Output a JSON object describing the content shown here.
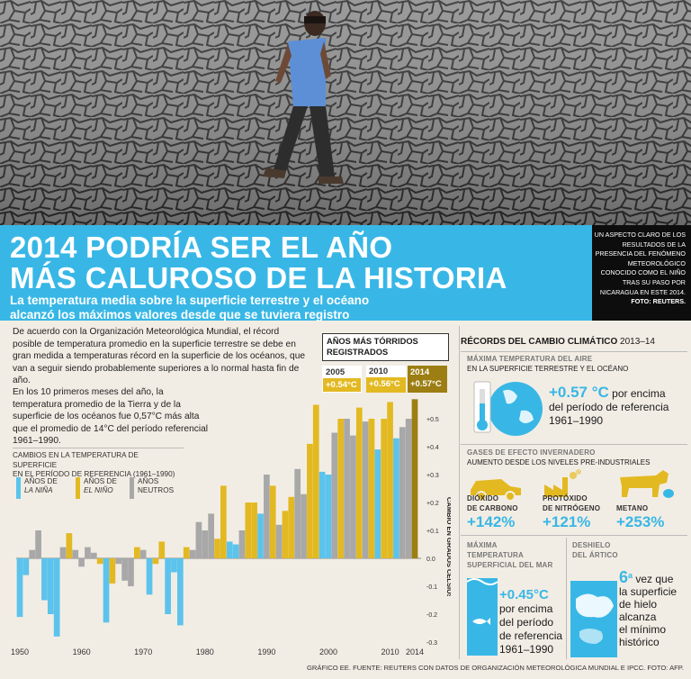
{
  "photo": {
    "alt": "dry-cracked-riverbed-photo"
  },
  "caption": {
    "text": "Un aspecto claro de los resultados de la presencia del fenómeno meteorológico conocido como El Niño tras su paso por Nicaragua en este 2014.",
    "credit": "Foto: Reuters."
  },
  "headline": {
    "line1": "2014 PODRÍA SER EL AÑO",
    "line2": "MÁS CALUROSO DE LA HISTORIA"
  },
  "subhead": {
    "line1": "La temperatura media sobre la superficie terrestre y el océano",
    "line2": "alcanzó los máximos valores desde que se tuviera registro"
  },
  "intro": {
    "p1": "De acuerdo con la Organización Meteorológica Mundial, el récord posible de temperatura promedio en la superficie terrestre se debe en gran medida a temperaturas récord en la superficie de los océanos, que van a seguir siendo probablemente superiores a lo normal hasta fin de año.",
    "p2": "En los 10 primeros meses del año, la temperatura promedio de la Tierra y de la superficie de los océanos fue 0,57°C más alta que el promedio de 14°C del período referencial 1961–1990."
  },
  "legend": {
    "title_line1": "Cambios en la temperatura de superficie",
    "title_line2": "en el período de referencia (1961–1990)",
    "nina_l1": "Años de",
    "nina_l2": "La Niña",
    "nino_l1": "Años de",
    "nino_l2": "El Niño",
    "neutral_l1": "Años",
    "neutral_l2": "neutros"
  },
  "hottest": {
    "title": "Años más tórridos registrados",
    "items": [
      {
        "year": "2005",
        "value": "+0.54°C"
      },
      {
        "year": "2010",
        "value": "+0.56°C"
      },
      {
        "year": "2014",
        "value": "+0.57°C"
      }
    ]
  },
  "colors": {
    "nina": "#5cc3ec",
    "nino": "#e3b922",
    "neutral": "#a8a8a8",
    "highlight2014": "#9c7e12",
    "banner": "#38b7e6"
  },
  "chart_data": {
    "type": "bar",
    "ylabel": "Cambio en grados Celsius",
    "ylim": [
      -0.3,
      0.6
    ],
    "yticks": [
      "+0.5",
      "+0.4",
      "+0.3",
      "+0.2",
      "+0.1",
      "0.0",
      "-0.1",
      "-0.2",
      "-0.3"
    ],
    "ytick_values": [
      0.5,
      0.4,
      0.3,
      0.2,
      0.1,
      0.0,
      -0.1,
      -0.2,
      -0.3
    ],
    "xticks": [
      "1950",
      "1960",
      "1970",
      "1980",
      "1990",
      "2000",
      "2010",
      "2014"
    ],
    "xtick_values": [
      1950,
      1960,
      1970,
      1980,
      1990,
      2000,
      2010,
      2014
    ],
    "years": [
      1950,
      1951,
      1952,
      1953,
      1954,
      1955,
      1956,
      1957,
      1958,
      1959,
      1960,
      1961,
      1962,
      1963,
      1964,
      1965,
      1966,
      1967,
      1968,
      1969,
      1970,
      1971,
      1972,
      1973,
      1974,
      1975,
      1976,
      1977,
      1978,
      1979,
      1980,
      1981,
      1982,
      1983,
      1984,
      1985,
      1986,
      1987,
      1988,
      1989,
      1990,
      1991,
      1992,
      1993,
      1994,
      1995,
      1996,
      1997,
      1998,
      1999,
      2000,
      2001,
      2002,
      2003,
      2004,
      2005,
      2006,
      2007,
      2008,
      2009,
      2010,
      2011,
      2012,
      2013,
      2014
    ],
    "values": [
      -0.21,
      -0.06,
      0.03,
      0.1,
      -0.15,
      -0.2,
      -0.28,
      0.04,
      0.09,
      0.03,
      -0.03,
      0.04,
      0.02,
      -0.02,
      -0.23,
      -0.09,
      -0.02,
      -0.08,
      -0.1,
      0.04,
      0.03,
      -0.13,
      -0.02,
      0.06,
      -0.2,
      -0.05,
      -0.24,
      0.04,
      0.03,
      0.13,
      0.1,
      0.16,
      0.07,
      0.26,
      0.06,
      0.05,
      0.1,
      0.2,
      0.2,
      0.16,
      0.3,
      0.26,
      0.12,
      0.17,
      0.22,
      0.32,
      0.23,
      0.41,
      0.55,
      0.31,
      0.3,
      0.45,
      0.5,
      0.5,
      0.44,
      0.54,
      0.49,
      0.5,
      0.39,
      0.5,
      0.56,
      0.43,
      0.47,
      0.5,
      0.57
    ],
    "types": [
      "nina",
      "nina",
      "neutral",
      "neutral",
      "nina",
      "nina",
      "nina",
      "neutral",
      "nino",
      "neutral",
      "neutral",
      "neutral",
      "neutral",
      "nino",
      "nina",
      "nino",
      "neutral",
      "neutral",
      "neutral",
      "nino",
      "neutral",
      "nina",
      "nino",
      "nino",
      "nina",
      "nina",
      "nina",
      "nino",
      "neutral",
      "neutral",
      "neutral",
      "neutral",
      "nino",
      "nino",
      "nina",
      "nina",
      "neutral",
      "nino",
      "nino",
      "nina",
      "neutral",
      "nino",
      "neutral",
      "nino",
      "nino",
      "neutral",
      "neutral",
      "nino",
      "nino",
      "nina",
      "nina",
      "neutral",
      "nino",
      "neutral",
      "neutral",
      "nino",
      "neutral",
      "nino",
      "nina",
      "nino",
      "nino",
      "nina",
      "neutral",
      "neutral",
      "nino"
    ]
  },
  "records": {
    "title": "Récords del cambio climático",
    "title_period": "2013–14",
    "air": {
      "h1": "Máxima temperatura del aire",
      "h2": "en la superficie terrestre y el océano",
      "value": "+0.57 °C",
      "text1": "por encima",
      "text2": "del período de referencia",
      "text3": "1961–1990"
    },
    "gases": {
      "h1": "Gases de efecto invernadero",
      "h2": "Aumento desde los niveles pre-industriales",
      "co2_label1": "Dióxido",
      "co2_label2": "de carbono",
      "co2_value": "+142%",
      "n2o_label1": "Protóxido",
      "n2o_label2": "de nitrógeno",
      "n2o_value": "+121%",
      "ch4_label": "Metano",
      "ch4_value": "+253%"
    },
    "sea": {
      "h1": "Máxima",
      "h2": "temperatura",
      "h3": "superficial del mar",
      "value": "+0.45°C",
      "t1": "por encima",
      "t2": "del período",
      "t3": "de referencia",
      "t4": "1961–1990"
    },
    "arctic": {
      "h1": "Deshielo",
      "h2": "del ártico",
      "num": "6",
      "sup": "a",
      "t0": "vez que",
      "t1": "la superficie",
      "t2": "de hielo",
      "t3": "alcanza",
      "t4": "el mínimo",
      "t5": "histórico"
    }
  },
  "footer": "Gráfico EE. Fuente: Reuters con datos de Organización Meteorológica Mundial e IPCC. Foto: AFP."
}
